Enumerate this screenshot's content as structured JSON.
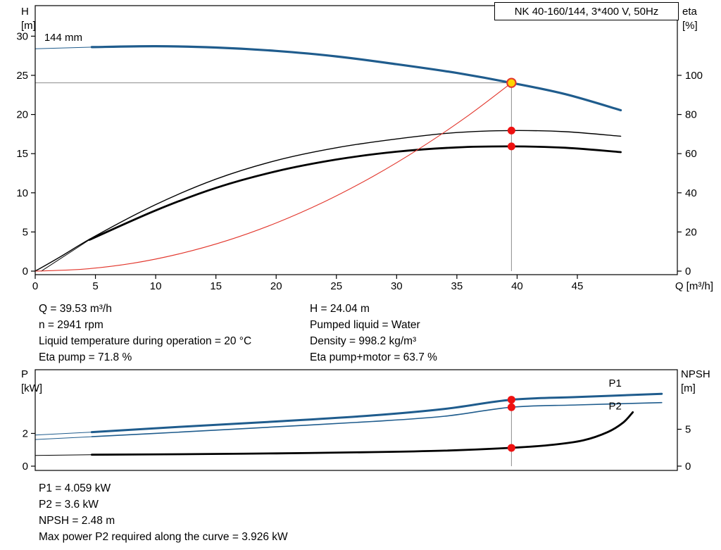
{
  "title_box": {
    "label": "NK 40-160/144, 3*400 V, 50Hz"
  },
  "colors": {
    "curve_blue": "#1f5c8d",
    "curve_black": "#000000",
    "curve_red": "#e2352b",
    "dot_red": "#ee1111",
    "dot_yellow_fill": "#ffd400",
    "dot_yellow_stroke": "#e2352b",
    "guide_gray": "#8c8c8c",
    "axis_black": "#000000"
  },
  "chart_data": [
    {
      "name": "qh-eta-chart",
      "type": "line",
      "x_axis_title": "Q [m³/h]",
      "axis_left_title": [
        "H",
        "[m]"
      ],
      "axis_right_title": [
        "eta",
        "[%]"
      ],
      "x_range": [
        0,
        53.3
      ],
      "y_range": [
        -0.45,
        33.9
      ],
      "y_right_range": [
        -1.8,
        135.6
      ],
      "x_ticks": [
        0,
        5,
        10,
        15,
        20,
        25,
        30,
        35,
        40,
        45
      ],
      "y_ticks_left": [
        0,
        5,
        10,
        15,
        20,
        25,
        30
      ],
      "y_ticks_right": [
        0,
        20,
        40,
        60,
        80,
        100
      ],
      "guides": [
        {
          "type": "v",
          "q": 39.53,
          "axis": "left",
          "to": 24.04
        },
        {
          "type": "h",
          "axis": "left",
          "v": 24.04,
          "to": 39.53
        }
      ],
      "series": [
        {
          "name": "head-curve-lead",
          "color": "curve_blue",
          "width": 1,
          "axis": "left",
          "points": [
            [
              0,
              28.4
            ],
            [
              4.7,
              28.6
            ]
          ]
        },
        {
          "name": "head-curve",
          "color": "curve_blue",
          "width": 3.2,
          "axis": "left",
          "points": [
            [
              4.7,
              28.6
            ],
            [
              10,
              28.72
            ],
            [
              15,
              28.55
            ],
            [
              20,
              28.12
            ],
            [
              25,
              27.42
            ],
            [
              30,
              26.42
            ],
            [
              35,
              25.3
            ],
            [
              39.53,
              24.04
            ],
            [
              44,
              22.6
            ],
            [
              48.6,
              20.55
            ]
          ]
        },
        {
          "name": "eta-pump-curve",
          "color": "curve_black",
          "width": 1.4,
          "axis": "right",
          "points": [
            [
              0,
              0
            ],
            [
              2,
              7
            ],
            [
              5,
              18
            ],
            [
              10,
              34
            ],
            [
              15,
              47
            ],
            [
              20,
              56.5
            ],
            [
              25,
              63
            ],
            [
              30,
              67.5
            ],
            [
              35,
              70.8
            ],
            [
              39.53,
              71.8
            ],
            [
              44,
              71.2
            ],
            [
              48.6,
              68.9
            ]
          ]
        },
        {
          "name": "eta-pump-motor-lead",
          "color": "curve_black",
          "width": 1,
          "axis": "right",
          "points": [
            [
              0.5,
              0
            ],
            [
              4.5,
              16
            ]
          ]
        },
        {
          "name": "eta-pump-motor-curve",
          "color": "curve_black",
          "width": 2.8,
          "axis": "right",
          "points": [
            [
              4.5,
              16
            ],
            [
              10,
              31
            ],
            [
              15,
              42.5
            ],
            [
              20,
              51
            ],
            [
              25,
              57
            ],
            [
              30,
              61
            ],
            [
              35,
              63.2
            ],
            [
              39.53,
              63.7
            ],
            [
              44,
              63
            ],
            [
              48.6,
              60.8
            ]
          ]
        },
        {
          "name": "system-curve",
          "color": "curve_red",
          "width": 1.1,
          "axis": "left",
          "points": [
            [
              0,
              0
            ],
            [
              4,
              0.25
            ],
            [
              8,
              0.98
            ],
            [
              12,
              2.22
            ],
            [
              16,
              3.94
            ],
            [
              20,
              6.15
            ],
            [
              24,
              8.86
            ],
            [
              28,
              12.06
            ],
            [
              32,
              15.75
            ],
            [
              36,
              19.93
            ],
            [
              39.53,
              24.04
            ]
          ]
        }
      ],
      "markers": [
        {
          "name": "duty-point",
          "q": 39.53,
          "v": 24.04,
          "axis": "left",
          "r": 6.2,
          "fill": "dot_yellow_fill",
          "stroke": "dot_yellow_stroke"
        },
        {
          "name": "eta-pump-point",
          "q": 39.53,
          "v": 71.8,
          "axis": "right",
          "r": 5.5,
          "fill": "dot_red"
        },
        {
          "name": "eta-pump-motor-point",
          "q": 39.53,
          "v": 63.7,
          "axis": "right",
          "r": 5.5,
          "fill": "dot_red"
        }
      ],
      "curve_labels": [
        {
          "text": "144 mm",
          "q": 0.75,
          "v": 29.4,
          "axis": "left",
          "color": "curve_black"
        }
      ]
    },
    {
      "name": "power-npsh-chart",
      "type": "line",
      "axis_left_title": [
        "P",
        "[kW]"
      ],
      "axis_right_title": [
        "NPSH",
        "[m]"
      ],
      "x_range": [
        0,
        53.3
      ],
      "y_range": [
        -0.26,
        5.89
      ],
      "y_right_range": [
        -0.58,
        13.07
      ],
      "x_ticks": [],
      "y_ticks_left": [
        0,
        2
      ],
      "y_ticks_right": [
        0,
        5
      ],
      "guides": [
        {
          "type": "v",
          "q": 39.53,
          "axis": "left",
          "to": 4.059
        }
      ],
      "series": [
        {
          "name": "p1-lead",
          "color": "curve_blue",
          "width": 1,
          "axis": "left",
          "points": [
            [
              0,
              1.9
            ],
            [
              4.7,
              2.08
            ]
          ]
        },
        {
          "name": "p1-curve",
          "color": "curve_blue",
          "width": 3,
          "axis": "left",
          "points": [
            [
              4.7,
              2.08
            ],
            [
              12,
              2.4
            ],
            [
              20,
              2.73
            ],
            [
              28,
              3.1
            ],
            [
              34,
              3.5
            ],
            [
              39.53,
              4.059
            ],
            [
              45,
              4.22
            ],
            [
              52,
              4.42
            ]
          ]
        },
        {
          "name": "p2-lead",
          "color": "curve_blue",
          "width": 1,
          "axis": "left",
          "points": [
            [
              0,
              1.63
            ],
            [
              4.7,
              1.8
            ]
          ]
        },
        {
          "name": "p2-curve",
          "color": "curve_blue",
          "width": 1.6,
          "axis": "left",
          "points": [
            [
              4.7,
              1.8
            ],
            [
              12,
              2.08
            ],
            [
              20,
              2.4
            ],
            [
              28,
              2.73
            ],
            [
              34,
              3.05
            ],
            [
              39.53,
              3.6
            ],
            [
              45,
              3.74
            ],
            [
              52,
              3.88
            ]
          ]
        },
        {
          "name": "npsh-lead",
          "color": "curve_black",
          "width": 1,
          "axis": "right",
          "points": [
            [
              0,
              1.45
            ],
            [
              4.7,
              1.55
            ]
          ]
        },
        {
          "name": "npsh-curve",
          "color": "curve_black",
          "width": 2.8,
          "axis": "right",
          "points": [
            [
              4.7,
              1.55
            ],
            [
              12,
              1.62
            ],
            [
              20,
              1.73
            ],
            [
              28,
              1.9
            ],
            [
              34,
              2.1
            ],
            [
              39.53,
              2.48
            ],
            [
              43,
              2.9
            ],
            [
              45.5,
              3.5
            ],
            [
              47.5,
              4.6
            ],
            [
              48.8,
              5.9
            ],
            [
              49.6,
              7.3
            ]
          ]
        }
      ],
      "markers": [
        {
          "name": "p1-point",
          "q": 39.53,
          "v": 4.059,
          "axis": "left",
          "r": 5.5,
          "fill": "dot_red"
        },
        {
          "name": "p2-point",
          "q": 39.53,
          "v": 3.6,
          "axis": "left",
          "r": 5.5,
          "fill": "dot_red"
        },
        {
          "name": "npsh-point",
          "q": 39.53,
          "v": 2.48,
          "axis": "right",
          "r": 5.5,
          "fill": "dot_red"
        }
      ],
      "curve_labels": [
        {
          "text": "P1",
          "q": 47.6,
          "v": 4.85,
          "axis": "left",
          "color": "curve_blue"
        },
        {
          "text": "P2",
          "q": 47.6,
          "v": 3.45,
          "axis": "left",
          "color": "curve_blue"
        }
      ]
    }
  ],
  "duty_info": {
    "left": [
      "Q = 39.53 m³/h",
      "n = 2941 rpm",
      "Liquid temperature during operation = 20 °C",
      "Eta pump = 71.8 %"
    ],
    "right": [
      "H = 24.04 m",
      "Pumped liquid = Water",
      "Density = 998.2 kg/m³",
      "Eta pump+motor = 63.7 %"
    ]
  },
  "power_info": {
    "lines": [
      "P1 = 4.059 kW",
      "P2 = 3.6 kW",
      "NPSH = 2.48 m",
      "Max power P2 required along the curve = 3.926 kW"
    ]
  }
}
